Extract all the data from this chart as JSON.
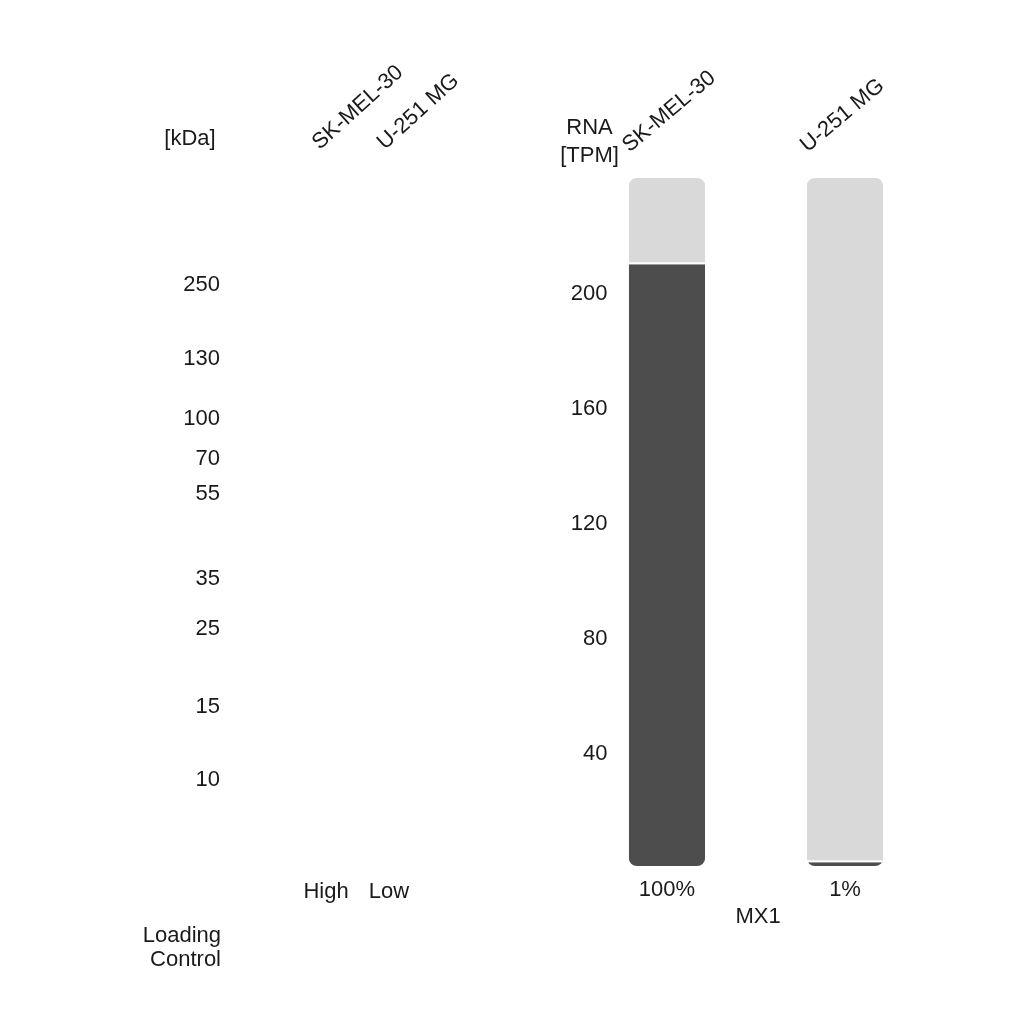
{
  "chart_data": [
    {
      "type": "other",
      "categories": [
        "SK-MEL-30",
        "U-251 MG"
      ],
      "ylabel": "[kDa]",
      "annotations": [
        "250",
        "130",
        "100",
        "70",
        "55",
        "35",
        "25",
        "15",
        "10",
        "High",
        "Low",
        "Loading Control"
      ]
    },
    {
      "type": "bar",
      "categories": [
        "SK-MEL-30",
        "U-251 MG"
      ],
      "ylabel": "RNA [TPM]",
      "xlabel": "MX1",
      "stacked": true,
      "ylim": [
        0,
        240
      ],
      "yticks": [
        40,
        80,
        120,
        160,
        200
      ],
      "series": [
        {
          "color": "#4d4d4d",
          "values": [
            210,
            2
          ]
        },
        {
          "color": "#d9d9d9",
          "values": [
            30,
            238
          ]
        }
      ],
      "annotations": [
        "100%",
        "1%"
      ]
    }
  ]
}
